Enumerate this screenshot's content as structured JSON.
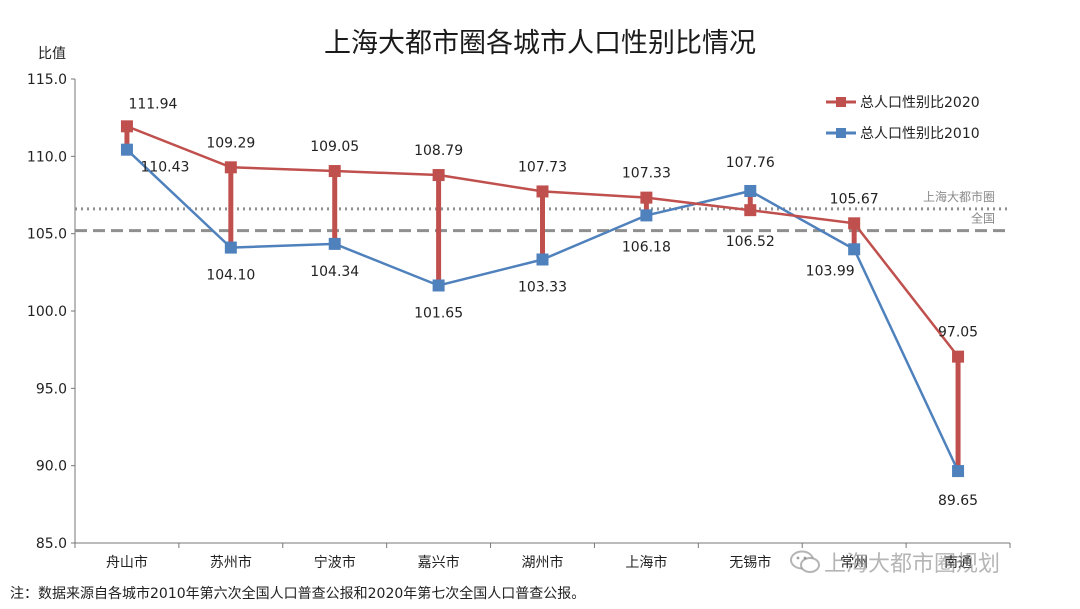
{
  "colors": {
    "series_2020": "#c0504d",
    "series_2010": "#4f81bd",
    "ref_metro": "#8f8f8f",
    "ref_national": "#8f8f8f"
  },
  "footnote": "注：数据来源自各城市2010年第六次全国人口普查公报和2020年第七次全国人口普查公报。",
  "watermark": "上海大都市圈规划",
  "chart_data": {
    "type": "line",
    "title": "上海大都市圈各城市人口性别比情况",
    "ylabel": "比值",
    "xlabel": "",
    "categories": [
      "舟山市",
      "苏州市",
      "宁波市",
      "嘉兴市",
      "湖州市",
      "上海市",
      "无锡市",
      "常州",
      "南通"
    ],
    "ylim": [
      85,
      115
    ],
    "yticks": [
      "85.0",
      "90.0",
      "95.0",
      "100.0",
      "105.0",
      "110.0",
      "115.0"
    ],
    "series": [
      {
        "name": "总人口性别比2020",
        "values": [
          111.94,
          109.29,
          109.05,
          108.79,
          107.73,
          107.33,
          106.52,
          105.67,
          97.05
        ],
        "labels": [
          "111.94",
          "109.29",
          "109.05",
          "108.79",
          "107.73",
          "107.33",
          "106.52",
          "105.67",
          "97.05"
        ]
      },
      {
        "name": "总人口性别比2010",
        "values": [
          110.43,
          104.1,
          104.34,
          101.65,
          103.33,
          106.18,
          107.76,
          103.99,
          89.65
        ],
        "labels": [
          "110.43",
          "104.10",
          "104.34",
          "101.65",
          "103.33",
          "106.18",
          "107.76",
          "103.99",
          "89.65"
        ]
      }
    ],
    "reference_lines": [
      {
        "name": "上海大都市圈",
        "value": 106.6,
        "style": "dotted"
      },
      {
        "name": "全国",
        "value": 105.2,
        "style": "dashed"
      }
    ],
    "legend_position": "top-right",
    "grid": false
  }
}
